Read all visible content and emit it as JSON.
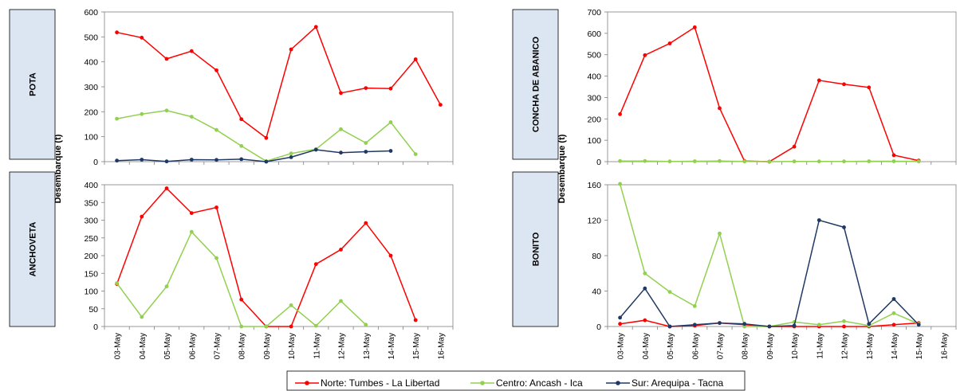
{
  "shared": {
    "ylabel": "Desembarque (t)",
    "x_ticks": [
      "03-May",
      "04-May",
      "05-May",
      "06-May",
      "07-May",
      "08-May",
      "09-May",
      "10-May",
      "11-May",
      "12-May",
      "13-May",
      "14-May",
      "15-May",
      "16-May"
    ]
  },
  "legend": [
    {
      "name": "Norte: Tumbes - La Libertad",
      "color": "#ff0000"
    },
    {
      "name": "Centro: Ancash - Ica",
      "color": "#92d050"
    },
    {
      "name": "Sur: Arequipa - Tacna",
      "color": "#1f3864"
    }
  ],
  "chart_data": [
    {
      "type": "line",
      "title": "POTA",
      "ylim": [
        0,
        600
      ],
      "yticks": [
        0,
        100,
        200,
        300,
        400,
        500,
        600
      ],
      "categories": [
        "03-May",
        "04-May",
        "05-May",
        "06-May",
        "07-May",
        "08-May",
        "09-May",
        "10-May",
        "11-May",
        "12-May",
        "13-May",
        "14-May",
        "15-May",
        "16-May"
      ],
      "series": [
        {
          "name": "Norte: Tumbes - La Libertad",
          "values": [
            518,
            497,
            412,
            443,
            366,
            170,
            95,
            450,
            540,
            275,
            295,
            293,
            410,
            228
          ]
        },
        {
          "name": "Centro: Ancash - Ica",
          "values": [
            172,
            191,
            205,
            180,
            127,
            63,
            2,
            33,
            50,
            130,
            75,
            158,
            30,
            null
          ]
        },
        {
          "name": "Sur: Arequipa - Tacna",
          "values": [
            4,
            8,
            1,
            8,
            7,
            10,
            0,
            18,
            48,
            36,
            40,
            43,
            null,
            null
          ]
        }
      ]
    },
    {
      "type": "line",
      "title": "CONCHA DE ABANICO",
      "ylim": [
        0,
        700
      ],
      "yticks": [
        0,
        100,
        200,
        300,
        400,
        500,
        600,
        700
      ],
      "categories": [
        "03-May",
        "04-May",
        "05-May",
        "06-May",
        "07-May",
        "08-May",
        "09-May",
        "10-May",
        "11-May",
        "12-May",
        "13-May",
        "14-May",
        "15-May",
        "16-May"
      ],
      "series": [
        {
          "name": "Norte: Tumbes - La Libertad",
          "values": [
            222,
            498,
            553,
            628,
            250,
            3,
            0,
            70,
            380,
            362,
            347,
            30,
            5,
            null
          ]
        },
        {
          "name": "Centro: Ancash - Ica",
          "values": [
            3,
            3,
            1,
            2,
            3,
            1,
            0,
            1,
            1,
            1,
            2,
            2,
            1,
            null
          ]
        }
      ]
    },
    {
      "type": "line",
      "title": "ANCHOVETA",
      "ylim": [
        0,
        400
      ],
      "yticks": [
        0,
        50,
        100,
        150,
        200,
        250,
        300,
        350,
        400
      ],
      "categories": [
        "03-May",
        "04-May",
        "05-May",
        "06-May",
        "07-May",
        "08-May",
        "09-May",
        "10-May",
        "11-May",
        "12-May",
        "13-May",
        "14-May",
        "15-May",
        "16-May"
      ],
      "series": [
        {
          "name": "Norte: Tumbes - La Libertad",
          "values": [
            120,
            310,
            390,
            320,
            336,
            76,
            0,
            0,
            176,
            217,
            292,
            200,
            18,
            null
          ]
        },
        {
          "name": "Centro: Ancash - Ica",
          "values": [
            122,
            27,
            113,
            267,
            193,
            0,
            0,
            60,
            2,
            72,
            5,
            null,
            null,
            null
          ]
        }
      ]
    },
    {
      "type": "line",
      "title": "BONITO",
      "ylim": [
        0,
        160
      ],
      "yticks": [
        0,
        40,
        80,
        120,
        160
      ],
      "categories": [
        "03-May",
        "04-May",
        "05-May",
        "06-May",
        "07-May",
        "08-May",
        "09-May",
        "10-May",
        "11-May",
        "12-May",
        "13-May",
        "14-May",
        "15-May",
        "16-May"
      ],
      "series": [
        {
          "name": "Norte: Tumbes - La Libertad",
          "values": [
            3,
            7,
            0,
            1,
            4,
            2,
            0,
            0,
            0,
            0,
            0,
            2,
            4,
            null
          ]
        },
        {
          "name": "Centro: Ancash - Ica",
          "values": [
            161,
            60,
            39,
            23,
            105,
            0,
            0,
            5,
            2,
            6,
            1,
            15,
            3,
            null
          ]
        },
        {
          "name": "Sur: Arequipa - Tacna",
          "values": [
            10,
            43,
            0,
            2,
            4,
            3,
            0,
            1,
            120,
            112,
            3,
            31,
            2,
            null
          ]
        }
      ]
    }
  ]
}
